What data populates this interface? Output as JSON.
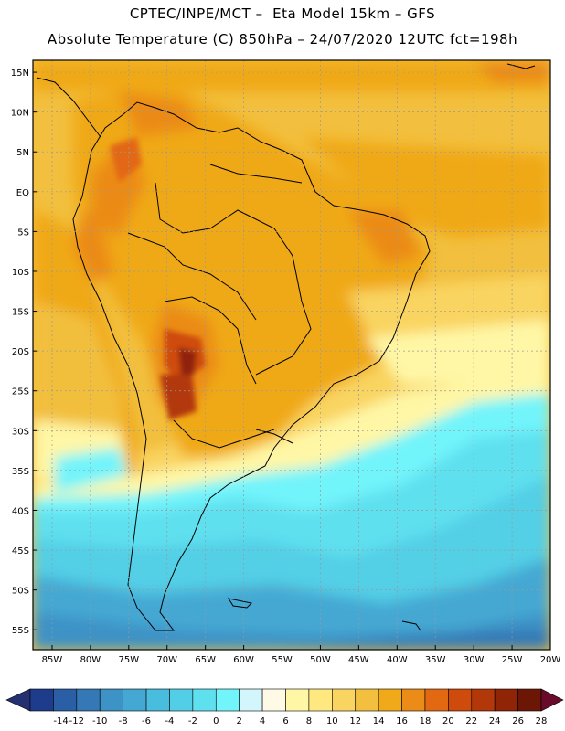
{
  "header": {
    "line1": "CPTEC/INPE/MCT –  Eta Model 15km – GFS",
    "line2": "Absolute Temperature (C) 850hPa – 24/07/2020 12UTC fct=198h"
  },
  "map": {
    "lat_ticks": [
      "15N",
      "10N",
      "5N",
      "EQ",
      "5S",
      "10S",
      "15S",
      "20S",
      "25S",
      "30S",
      "35S",
      "40S",
      "45S",
      "50S",
      "55S"
    ],
    "lon_ticks": [
      "85W",
      "80W",
      "75W",
      "70W",
      "65W",
      "60W",
      "55W",
      "50W",
      "45W",
      "40W",
      "35W",
      "30W",
      "25W",
      "20W"
    ],
    "lat_range": [
      -57.5,
      16.5
    ],
    "lon_range": [
      -87.5,
      -20
    ],
    "grid": true,
    "gridline_style": "dotted"
  },
  "colorbar": {
    "labels": [
      "-14",
      "-12",
      "-10",
      "-8",
      "-6",
      "-4",
      "-2",
      "0",
      "2",
      "4",
      "6",
      "8",
      "10",
      "12",
      "14",
      "16",
      "18",
      "20",
      "22",
      "24",
      "26",
      "28"
    ],
    "colors": [
      "#1e3c8c",
      "#2a5ea5",
      "#3479b6",
      "#3d92c6",
      "#44a8d3",
      "#49bddd",
      "#52cfe6",
      "#5fe0ef",
      "#72f4fb",
      "#d2f6fc",
      "#fffae6",
      "#fff7a6",
      "#ffe880",
      "#f9d461",
      "#f2bf3e",
      "#f0a919",
      "#eb8b18",
      "#e26812",
      "#ce4b0c",
      "#b23709",
      "#8f2407",
      "#6c1705"
    ],
    "under_color": "#243070",
    "over_color": "#6a0b2b"
  }
}
